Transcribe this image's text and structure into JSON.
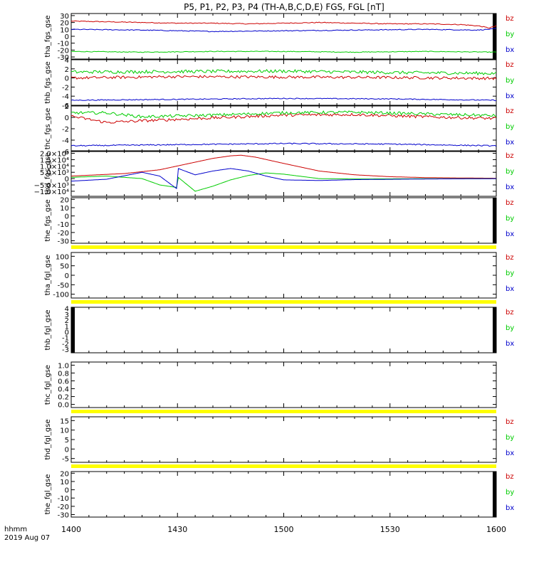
{
  "title": "P5, P1, P2, P3, P4 (TH-A,B,C,D,E) FGS, FGL [nT]",
  "time_axis": {
    "ticks": [
      "1400",
      "1430",
      "1500",
      "1530",
      "1600"
    ],
    "label_line1": "hhmm",
    "label_line2": "2019 Aug 07"
  },
  "colors": {
    "bz": "#cc0000",
    "by": "#00cc00",
    "bx": "#0000cc",
    "nodata": "#ffff00",
    "frame": "#000000"
  },
  "chart_data": [
    {
      "type": "line",
      "ylabel": "tha_fgs_gse",
      "ylim": [
        -33,
        33
      ],
      "yticks": [
        "30",
        "20",
        "10",
        "0",
        "-10",
        "-20",
        "-30"
      ],
      "ytick_values": [
        30,
        20,
        10,
        0,
        -10,
        -20,
        -30
      ],
      "legend": [
        "bz",
        "by",
        "bx"
      ],
      "nodata_band": false,
      "edge_bars": "right",
      "series": [
        {
          "name": "bz",
          "x": [
            0,
            10,
            20,
            30,
            40,
            50,
            60,
            70,
            80,
            90,
            100,
            110,
            115,
            118,
            120
          ],
          "values": [
            22,
            21,
            20,
            19,
            19,
            18,
            19,
            20,
            19,
            18,
            18,
            17,
            15,
            12,
            15
          ],
          "noise": 0.6
        },
        {
          "name": "by",
          "x": [
            0,
            20,
            40,
            60,
            80,
            100,
            120
          ],
          "values": [
            -22,
            -23,
            -22,
            -22,
            -23,
            -22,
            -23
          ],
          "noise": 0.5
        },
        {
          "name": "bx",
          "x": [
            0,
            20,
            40,
            60,
            80,
            100,
            115,
            120
          ],
          "values": [
            10,
            9,
            7,
            8,
            9,
            10,
            9,
            11
          ],
          "noise": 0.6
        }
      ]
    },
    {
      "type": "line",
      "ylabel": "thb_fgs_gse",
      "ylim": [
        -6,
        4
      ],
      "yticks": [
        "4",
        "2",
        "0",
        "-2",
        "-4",
        "-6"
      ],
      "ytick_values": [
        4,
        2,
        0,
        -2,
        -4,
        -6
      ],
      "legend": [
        "bz",
        "by",
        "bx"
      ],
      "nodata_band": false,
      "edge_bars": "none",
      "series": [
        {
          "name": "bz",
          "x": [
            0,
            30,
            60,
            90,
            120
          ],
          "values": [
            0,
            0.3,
            0.2,
            0.1,
            -0.1
          ],
          "noise": 0.3
        },
        {
          "name": "by",
          "x": [
            0,
            30,
            60,
            90,
            120
          ],
          "values": [
            1.3,
            1.4,
            1.5,
            1.2,
            1.0
          ],
          "noise": 0.35
        },
        {
          "name": "bx",
          "x": [
            0,
            30,
            60,
            90,
            120
          ],
          "values": [
            -4.9,
            -4.7,
            -4.5,
            -4.6,
            -4.9
          ],
          "noise": 0.1
        }
      ]
    },
    {
      "type": "line",
      "ylabel": "thc_fgs_gse",
      "ylim": [
        -6,
        2
      ],
      "yticks": [
        "2",
        "0",
        "-2",
        "-4",
        "-6"
      ],
      "ytick_values": [
        2,
        0,
        -2,
        -4,
        -6
      ],
      "legend": [
        "bz",
        "by",
        "bx"
      ],
      "nodata_band": false,
      "edge_bars": "none",
      "series": [
        {
          "name": "bz",
          "x": [
            0,
            10,
            20,
            40,
            60,
            80,
            100,
            120
          ],
          "values": [
            0.2,
            -0.9,
            -0.6,
            -0.1,
            0.4,
            0.5,
            0.1,
            -0.2
          ],
          "noise": 0.25
        },
        {
          "name": "by",
          "x": [
            0,
            10,
            20,
            40,
            60,
            80,
            100,
            120
          ],
          "values": [
            0.8,
            0.8,
            0.1,
            0.4,
            0.8,
            0.9,
            0.6,
            0.3
          ],
          "noise": 0.25
        },
        {
          "name": "bx",
          "x": [
            0,
            30,
            60,
            90,
            120
          ],
          "values": [
            -5.0,
            -4.8,
            -4.6,
            -4.7,
            -5.0
          ],
          "noise": 0.1
        }
      ]
    },
    {
      "type": "line",
      "ylabel": "thd_fgs_gse",
      "ylim": [
        -14000,
        22000
      ],
      "yticks": [
        "2.0×10⁴",
        "1.5×10⁴",
        "1.0×10⁴",
        "5.0×10³",
        "0",
        "−5.0×10³",
        "−1.0×10⁴"
      ],
      "ytick_values": [
        20000,
        15000,
        10000,
        5000,
        0,
        -5000,
        -10000
      ],
      "legend": [
        "bz",
        "by",
        "bx"
      ],
      "nodata_band": false,
      "edge_bars": "none",
      "series": [
        {
          "name": "bz",
          "x": [
            0,
            15,
            25,
            30,
            40,
            45,
            48,
            52,
            60,
            70,
            80,
            90,
            100,
            110,
            120
          ],
          "values": [
            2000,
            4000,
            7000,
            10000,
            16000,
            18000,
            18500,
            17000,
            12000,
            6000,
            3000,
            1500,
            800,
            500,
            300
          ],
          "noise": 0
        },
        {
          "name": "by",
          "x": [
            0,
            10,
            20,
            25,
            29.8,
            30.2,
            35,
            40,
            45,
            50,
            55,
            60,
            70,
            80,
            90,
            100,
            120
          ],
          "values": [
            1000,
            2000,
            0,
            -5000,
            -7000,
            1000,
            -10000,
            -6000,
            -1000,
            2500,
            4500,
            3500,
            0,
            -300,
            -200,
            -100,
            0
          ],
          "noise": 0
        },
        {
          "name": "bx",
          "x": [
            0,
            10,
            20,
            25,
            29.8,
            30.2,
            35,
            40,
            45,
            50,
            55,
            60,
            70,
            80,
            100,
            120
          ],
          "values": [
            -2000,
            -500,
            5000,
            2000,
            -8000,
            8000,
            3000,
            6000,
            8000,
            6000,
            2000,
            -1000,
            -1500,
            -800,
            -300,
            0
          ],
          "noise": 0
        }
      ]
    },
    {
      "type": "line",
      "ylabel": "the_fgs_gse",
      "ylim": [
        -33,
        22
      ],
      "yticks": [
        "20",
        "10",
        "0",
        "-10",
        "-20",
        "-30"
      ],
      "ytick_values": [
        20,
        10,
        0,
        -10,
        -20,
        -30
      ],
      "legend": [
        "bz",
        "by",
        "bx"
      ],
      "nodata_band": true,
      "edge_bars": "right",
      "series": []
    },
    {
      "type": "line",
      "ylabel": "tha_fgl_gse",
      "ylim": [
        -120,
        120
      ],
      "yticks": [
        "100",
        "50",
        "0",
        "-50",
        "-100"
      ],
      "ytick_values": [
        100,
        50,
        0,
        -50,
        -100
      ],
      "legend": [
        "bz",
        "by",
        "bx"
      ],
      "nodata_band": true,
      "edge_bars": "none",
      "series": []
    },
    {
      "type": "line",
      "ylabel": "thb_fgl_gse",
      "ylim": [
        -3.6,
        4.2
      ],
      "yticks": [
        "4",
        "3",
        "2",
        "1",
        "0",
        "-1",
        "-2",
        "-3"
      ],
      "ytick_values": [
        4,
        3,
        2,
        1,
        0,
        -1,
        -2,
        -3
      ],
      "legend": [
        "bz",
        "by",
        "bx"
      ],
      "nodata_band": false,
      "edge_bars": "both",
      "series": []
    },
    {
      "type": "line",
      "ylabel": "thc_fgl_gse",
      "ylim": [
        -0.08,
        1.08
      ],
      "yticks": [
        "1.0",
        "0.8",
        "0.6",
        "0.4",
        "0.2",
        "0.0"
      ],
      "ytick_values": [
        1.0,
        0.8,
        0.6,
        0.4,
        0.2,
        0.0
      ],
      "legend": [],
      "nodata_band": true,
      "edge_bars": "none",
      "series": []
    },
    {
      "type": "line",
      "ylabel": "thd_fgl_gse",
      "ylim": [
        -7,
        17
      ],
      "yticks": [
        "15",
        "10",
        "5",
        "0",
        "-5"
      ],
      "ytick_values": [
        15,
        10,
        5,
        0,
        -5
      ],
      "legend": [
        "bz",
        "by",
        "bx"
      ],
      "nodata_band": true,
      "edge_bars": "none",
      "series": []
    },
    {
      "type": "line",
      "ylabel": "the_fgl_gse",
      "ylim": [
        -33,
        22
      ],
      "yticks": [
        "20",
        "10",
        "0",
        "-10",
        "-20",
        "-30"
      ],
      "ytick_values": [
        20,
        10,
        0,
        -10,
        -20,
        -30
      ],
      "legend": [
        "bz",
        "by",
        "bx"
      ],
      "nodata_band": false,
      "edge_bars": "right",
      "series": []
    }
  ]
}
